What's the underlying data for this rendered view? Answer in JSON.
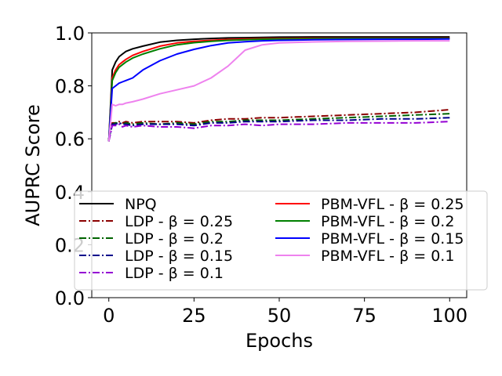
{
  "chart_data": {
    "type": "line",
    "title": "",
    "xlabel": "Epochs",
    "ylabel": "AUPRC Score",
    "xlim": [
      -5,
      105
    ],
    "ylim": [
      0.0,
      1.0
    ],
    "xticks": [
      0,
      25,
      50,
      75,
      100
    ],
    "xtick_labels": [
      "0",
      "25",
      "50",
      "75",
      "100"
    ],
    "yticks": [
      0.0,
      0.2,
      0.4,
      0.6,
      0.8,
      1.0
    ],
    "ytick_labels": [
      "0.0",
      "0.2",
      "0.4",
      "0.6",
      "0.8",
      "1.0"
    ],
    "grid": false,
    "legend_location": "lower-right",
    "x": [
      0,
      1,
      2,
      3,
      4,
      5,
      7,
      10,
      15,
      20,
      25,
      30,
      35,
      40,
      45,
      50,
      60,
      70,
      80,
      90,
      100
    ],
    "series": [
      {
        "name": "NPQ",
        "color": "#000000",
        "dash": "solid",
        "values": [
          0.59,
          0.86,
          0.89,
          0.91,
          0.92,
          0.93,
          0.94,
          0.95,
          0.965,
          0.972,
          0.976,
          0.979,
          0.981,
          0.982,
          0.983,
          0.984,
          0.985,
          0.985,
          0.985,
          0.985,
          0.985
        ]
      },
      {
        "name": "LDP - β = 0.25",
        "color": "#8b0000",
        "dash": "dashdot",
        "values": [
          0.6,
          0.66,
          0.66,
          0.665,
          0.66,
          0.665,
          0.66,
          0.665,
          0.665,
          0.665,
          0.66,
          0.67,
          0.675,
          0.675,
          0.68,
          0.68,
          0.685,
          0.69,
          0.695,
          0.7,
          0.71
        ]
      },
      {
        "name": "LDP - β = 0.2",
        "color": "#006400",
        "dash": "dashdot",
        "values": [
          0.6,
          0.655,
          0.66,
          0.66,
          0.655,
          0.66,
          0.655,
          0.66,
          0.655,
          0.66,
          0.655,
          0.665,
          0.665,
          0.67,
          0.67,
          0.67,
          0.675,
          0.68,
          0.685,
          0.69,
          0.695
        ]
      },
      {
        "name": "LDP - β = 0.15",
        "color": "#00008b",
        "dash": "dashdot",
        "values": [
          0.6,
          0.655,
          0.655,
          0.66,
          0.655,
          0.655,
          0.65,
          0.655,
          0.655,
          0.655,
          0.65,
          0.66,
          0.66,
          0.665,
          0.665,
          0.665,
          0.67,
          0.67,
          0.675,
          0.675,
          0.68
        ]
      },
      {
        "name": "LDP - β = 0.1",
        "color": "#9400d3",
        "dash": "dashdot",
        "values": [
          0.59,
          0.65,
          0.65,
          0.655,
          0.645,
          0.65,
          0.645,
          0.65,
          0.645,
          0.645,
          0.64,
          0.65,
          0.65,
          0.655,
          0.65,
          0.655,
          0.655,
          0.66,
          0.66,
          0.66,
          0.665
        ]
      },
      {
        "name": "PBM-VFL - β = 0.25",
        "color": "#ff0000",
        "dash": "solid",
        "values": [
          0.59,
          0.83,
          0.86,
          0.88,
          0.89,
          0.9,
          0.915,
          0.93,
          0.95,
          0.962,
          0.968,
          0.972,
          0.975,
          0.977,
          0.978,
          0.979,
          0.98,
          0.98,
          0.98,
          0.98,
          0.98
        ]
      },
      {
        "name": "PBM-VFL - β = 0.2",
        "color": "#008000",
        "dash": "solid",
        "values": [
          0.59,
          0.82,
          0.85,
          0.87,
          0.88,
          0.89,
          0.905,
          0.92,
          0.94,
          0.955,
          0.963,
          0.968,
          0.972,
          0.974,
          0.976,
          0.977,
          0.978,
          0.979,
          0.979,
          0.979,
          0.979
        ]
      },
      {
        "name": "PBM-VFL - β = 0.15",
        "color": "#0000ff",
        "dash": "solid",
        "values": [
          0.59,
          0.79,
          0.8,
          0.81,
          0.815,
          0.82,
          0.83,
          0.86,
          0.895,
          0.92,
          0.938,
          0.952,
          0.962,
          0.967,
          0.97,
          0.972,
          0.974,
          0.975,
          0.976,
          0.976,
          0.977
        ]
      },
      {
        "name": "PBM-VFL - β = 0.1",
        "color": "#ee82ee",
        "dash": "solid",
        "values": [
          0.59,
          0.73,
          0.725,
          0.73,
          0.73,
          0.735,
          0.74,
          0.75,
          0.77,
          0.785,
          0.8,
          0.83,
          0.875,
          0.935,
          0.955,
          0.962,
          0.966,
          0.968,
          0.969,
          0.97,
          0.97
        ]
      }
    ]
  }
}
